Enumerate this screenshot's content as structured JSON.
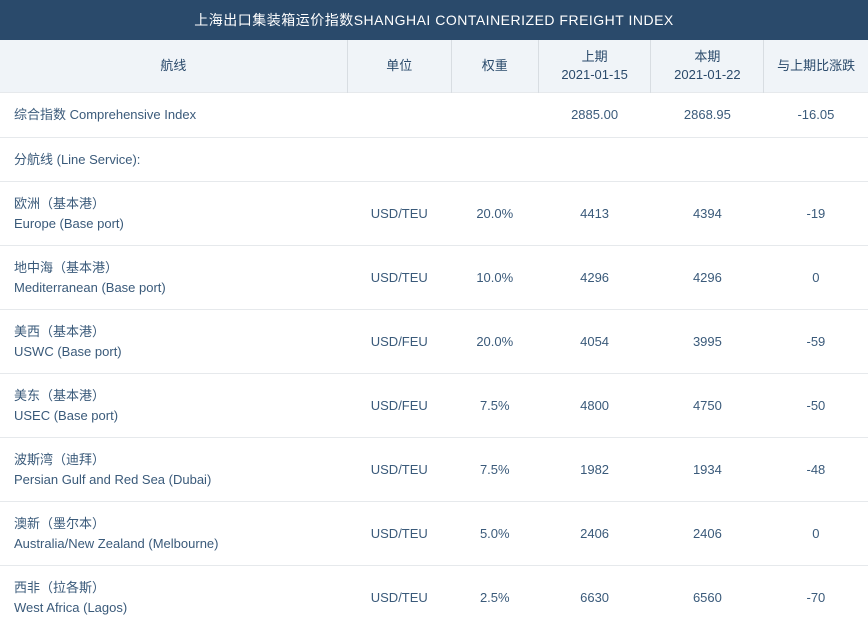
{
  "title": "上海出口集装箱运价指数SHANGHAI CONTAINERIZED FREIGHT INDEX",
  "columns": {
    "route": "航线",
    "unit": "单位",
    "weight": "权重",
    "prev_label": "上期",
    "prev_date": "2021-01-15",
    "curr_label": "本期",
    "curr_date": "2021-01-22",
    "change": "与上期比涨跌"
  },
  "comprehensive": {
    "label": "综合指数 Comprehensive Index",
    "prev": "2885.00",
    "curr": "2868.95",
    "change": "-16.05"
  },
  "section_label": "分航线 (Line Service):",
  "rows": [
    {
      "name_cn": "欧洲（基本港）",
      "name_en": "Europe (Base port)",
      "unit": "USD/TEU",
      "weight": "20.0%",
      "prev": "4413",
      "curr": "4394",
      "change": "-19"
    },
    {
      "name_cn": "地中海（基本港）",
      "name_en": "Mediterranean (Base port)",
      "unit": "USD/TEU",
      "weight": "10.0%",
      "prev": "4296",
      "curr": "4296",
      "change": "0"
    },
    {
      "name_cn": "美西（基本港）",
      "name_en": "USWC (Base port)",
      "unit": "USD/FEU",
      "weight": "20.0%",
      "prev": "4054",
      "curr": "3995",
      "change": "-59"
    },
    {
      "name_cn": "美东（基本港）",
      "name_en": "USEC (Base port)",
      "unit": "USD/FEU",
      "weight": "7.5%",
      "prev": "4800",
      "curr": "4750",
      "change": "-50"
    },
    {
      "name_cn": "波斯湾（迪拜）",
      "name_en": "Persian Gulf and Red Sea (Dubai)",
      "unit": "USD/TEU",
      "weight": "7.5%",
      "prev": "1982",
      "curr": "1934",
      "change": "-48"
    },
    {
      "name_cn": "澳新（墨尔本）",
      "name_en": "Australia/New Zealand (Melbourne)",
      "unit": "USD/TEU",
      "weight": "5.0%",
      "prev": "2406",
      "curr": "2406",
      "change": "0"
    },
    {
      "name_cn": "西非（拉各斯）",
      "name_en": "West Africa (Lagos)",
      "unit": "USD/TEU",
      "weight": "2.5%",
      "prev": "6630",
      "curr": "6560",
      "change": "-70"
    }
  ],
  "style": {
    "title_bg": "#2a4a6b",
    "title_color": "#ffffff",
    "header_bg": "#f0f4f8",
    "header_color": "#2a4a6b",
    "cell_color": "#3a5a7a",
    "row_border": "#e6e9ec",
    "header_border": "#d8dde2",
    "title_fontsize": 14,
    "header_fontsize": 13,
    "cell_fontsize": 13
  }
}
